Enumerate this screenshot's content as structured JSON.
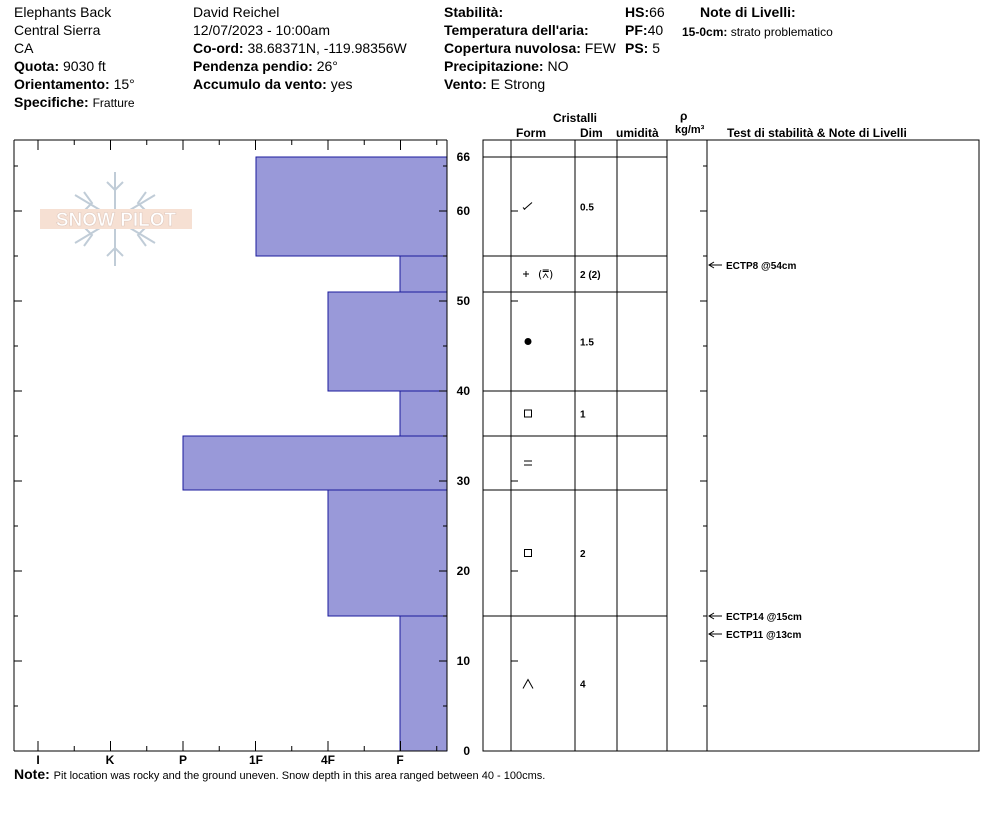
{
  "header": {
    "location": "Elephants Back",
    "range": "Central Sierra",
    "state": "CA",
    "elevation_label": "Quota:",
    "elevation_value": "9030 ft",
    "aspect_label": "Orientamento:",
    "aspect_value": "15°",
    "specifics_label": "Specifiche:",
    "specifics_value": "Fratture",
    "observer": "David Reichel",
    "datetime": "12/07/2023 - 10:00am",
    "coords_label": "Co-ord:",
    "coords_value": "38.68371N, -119.98356W",
    "slope_label": "Pendenza pendio:",
    "slope_value": "26°",
    "wind_loading_label": "Accumulo da vento:",
    "wind_loading_value": "yes",
    "stability_label": "Stabilità:",
    "stability_value": "",
    "air_temp_label": "Temperatura dell'aria:",
    "air_temp_value": "",
    "cloud_label": "Copertura nuvolosa:",
    "cloud_value": "FEW",
    "precip_label": "Precipitazione:",
    "precip_value": "NO",
    "wind_label": "Vento:",
    "wind_value": "E Strong",
    "hs_label": "HS:",
    "hs_value": "66",
    "pf_label": "PF:",
    "pf_value": "40",
    "ps_label": "PS:",
    "ps_value": "5",
    "layer_notes_title": "Note di Livelli:",
    "layer_note_range": "15-0cm:",
    "layer_note_text": "strato problematico"
  },
  "columns": {
    "crystals": "Cristalli",
    "form": "Form",
    "size": "Dim",
    "moisture": "umidità",
    "rho": "ρ",
    "density_unit": "kg/m³",
    "tests": "Test di stabilità & Note di Livelli"
  },
  "hardness_ticks": [
    "I",
    "K",
    "P",
    "1F",
    "4F",
    "F"
  ],
  "logo_text": "SNOW PILOT",
  "footer": {
    "note_label": "Note:",
    "note_text": "Pit location was rocky and the ground uneven. Snow depth in this area ranged between 40 - 100cms."
  },
  "tests": [
    {
      "label": "ECTP8 @54cm",
      "depth": 54
    },
    {
      "label": "ECTP14 @15cm",
      "depth": 15
    },
    {
      "label": "ECTP11 @13cm",
      "depth": 13
    }
  ],
  "chart_data": {
    "type": "bar",
    "xlabel": "",
    "ylabel": "",
    "ylim": [
      0,
      66
    ],
    "y_ticks": [
      0,
      10,
      20,
      30,
      40,
      50,
      60,
      66
    ],
    "hardness_scale": [
      "I",
      "K",
      "P",
      "1F",
      "4F",
      "F"
    ],
    "layers": [
      {
        "top": 66,
        "bottom": 55,
        "hardness": "1F",
        "hardness_index": 4,
        "form": "decomposing",
        "size": "0.5"
      },
      {
        "top": 55,
        "bottom": 51,
        "hardness": "F",
        "hardness_index": 6,
        "form": "new + surface hoar",
        "size": "2 (2)"
      },
      {
        "top": 51,
        "bottom": 40,
        "hardness": "4F",
        "hardness_index": 5,
        "form": "graupel",
        "size": "1.5"
      },
      {
        "top": 40,
        "bottom": 35,
        "hardness": "F",
        "hardness_index": 6,
        "form": "faceted",
        "size": "1"
      },
      {
        "top": 35,
        "bottom": 29,
        "hardness": "P",
        "hardness_index": 3,
        "form": "melt-freeze crust",
        "size": ""
      },
      {
        "top": 29,
        "bottom": 15,
        "hardness": "4F",
        "hardness_index": 5,
        "form": "faceted",
        "size": "2"
      },
      {
        "top": 15,
        "bottom": 0,
        "hardness": "F",
        "hardness_index": 6,
        "form": "depth hoar",
        "size": "4"
      }
    ]
  }
}
